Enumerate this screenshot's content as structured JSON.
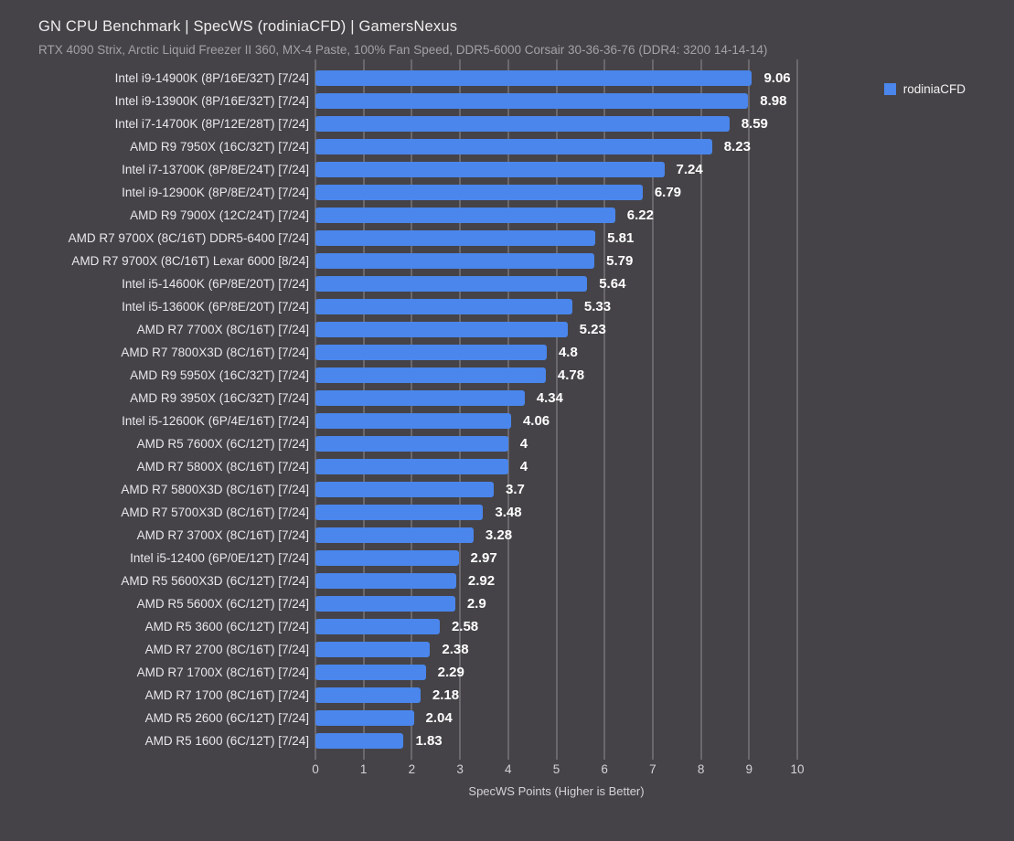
{
  "header": {
    "title": "GN CPU Benchmark | SpecWS (rodiniaCFD) | GamersNexus",
    "subtitle": "RTX 4090 Strix, Arctic Liquid Freezer II 360, MX-4 Paste, 100% Fan Speed, DDR5-6000 Corsair 30-36-36-76 (DDR4: 3200 14-14-14)"
  },
  "legend": {
    "label": "rodiniaCFD",
    "swatch_color": "#4a86ec"
  },
  "chart_data": {
    "type": "bar",
    "orientation": "horizontal",
    "title": "GN CPU Benchmark | SpecWS (rodiniaCFD) | GamersNexus",
    "subtitle": "RTX 4090 Strix, Arctic Liquid Freezer II 360, MX-4 Paste, 100% Fan Speed, DDR5-6000 Corsair 30-36-36-76 (DDR4: 3200 14-14-14)",
    "series_name": "rodiniaCFD",
    "bar_color": "#4a86ec",
    "background_color": "#454347",
    "grid": true,
    "legend_position": "top-right",
    "xlabel": "SpecWS Points (Higher is Better)",
    "xlim": [
      0,
      10
    ],
    "xticks": [
      0,
      1,
      2,
      3,
      4,
      5,
      6,
      7,
      8,
      9,
      10
    ],
    "categories": [
      "Intel i9-14900K (8P/16E/32T) [7/24]",
      "Intel i9-13900K (8P/16E/32T) [7/24]",
      "Intel i7-14700K (8P/12E/28T) [7/24]",
      "AMD R9 7950X (16C/32T) [7/24]",
      "Intel i7-13700K (8P/8E/24T) [7/24]",
      "Intel i9-12900K (8P/8E/24T) [7/24]",
      "AMD R9 7900X (12C/24T) [7/24]",
      "AMD R7 9700X (8C/16T) DDR5-6400 [7/24]",
      "AMD R7 9700X (8C/16T) Lexar 6000 [8/24]",
      "Intel i5-14600K (6P/8E/20T) [7/24]",
      "Intel i5-13600K (6P/8E/20T) [7/24]",
      "AMD R7 7700X (8C/16T) [7/24]",
      "AMD R7 7800X3D (8C/16T) [7/24]",
      "AMD R9 5950X (16C/32T) [7/24]",
      "AMD R9 3950X (16C/32T) [7/24]",
      "Intel i5-12600K (6P/4E/16T) [7/24]",
      "AMD R5 7600X (6C/12T) [7/24]",
      "AMD R7 5800X (8C/16T) [7/24]",
      "AMD R7 5800X3D (8C/16T) [7/24]",
      "AMD R7 5700X3D (8C/16T) [7/24]",
      "AMD R7 3700X (8C/16T) [7/24]",
      "Intel i5-12400 (6P/0E/12T) [7/24]",
      "AMD R5 5600X3D (6C/12T) [7/24]",
      "AMD R5 5600X (6C/12T) [7/24]",
      "AMD R5 3600 (6C/12T) [7/24]",
      "AMD R7 2700 (8C/16T) [7/24]",
      "AMD R7 1700X (8C/16T) [7/24]",
      "AMD R7 1700 (8C/16T) [7/24]",
      "AMD R5 2600 (6C/12T) [7/24]",
      "AMD R5 1600 (6C/12T) [7/24]"
    ],
    "values": [
      9.06,
      8.98,
      8.59,
      8.23,
      7.24,
      6.79,
      6.22,
      5.81,
      5.79,
      5.64,
      5.33,
      5.23,
      4.8,
      4.78,
      4.34,
      4.06,
      4,
      4,
      3.7,
      3.48,
      3.28,
      2.97,
      2.92,
      2.9,
      2.58,
      2.38,
      2.29,
      2.18,
      2.04,
      1.83
    ]
  }
}
